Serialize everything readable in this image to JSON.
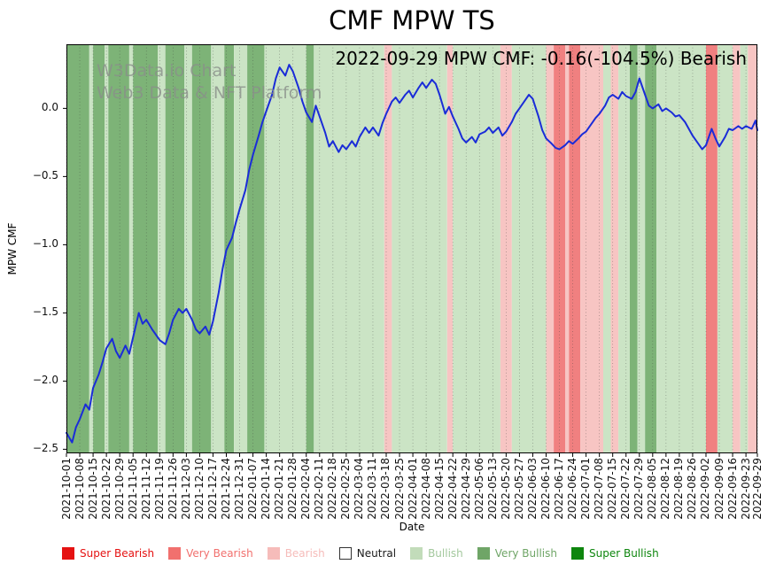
{
  "chart_data": {
    "type": "line",
    "title": "CMF MPW TS",
    "annotation": "2022-09-29 MPW CMF: -0.16(-104.5%) Bearish",
    "watermark_line1": "W3Data.io Chart",
    "watermark_line2": "Web3 Data & NFT Platform",
    "xlabel": "Date",
    "ylabel": "MPW CMF",
    "ylim": [
      -2.53,
      0.47
    ],
    "total_days": 363,
    "grid": "vertical dotted gridlines at weekly date ticks",
    "legend_position": "bottom",
    "y_ticks": [
      [
        "0.0",
        0.0
      ],
      [
        "−0.5",
        -0.5
      ],
      [
        "−1.0",
        -1.0
      ],
      [
        "−1.5",
        -1.5
      ],
      [
        "−2.0",
        -2.0
      ],
      [
        "−2.5",
        -2.5
      ]
    ],
    "x_ticks": [
      [
        "2021-10-01",
        0
      ],
      [
        "2021-10-08",
        7
      ],
      [
        "2021-10-15",
        14
      ],
      [
        "2021-10-22",
        21
      ],
      [
        "2021-10-29",
        28
      ],
      [
        "2021-11-05",
        35
      ],
      [
        "2021-11-12",
        42
      ],
      [
        "2021-11-19",
        49
      ],
      [
        "2021-11-26",
        56
      ],
      [
        "2021-12-03",
        63
      ],
      [
        "2021-12-10",
        70
      ],
      [
        "2021-12-17",
        77
      ],
      [
        "2021-12-24",
        84
      ],
      [
        "2021-12-31",
        91
      ],
      [
        "2022-01-07",
        98
      ],
      [
        "2022-01-14",
        105
      ],
      [
        "2022-01-21",
        112
      ],
      [
        "2022-01-28",
        119
      ],
      [
        "2022-02-04",
        126
      ],
      [
        "2022-02-11",
        133
      ],
      [
        "2022-02-18",
        140
      ],
      [
        "2022-02-25",
        147
      ],
      [
        "2022-03-04",
        154
      ],
      [
        "2022-03-11",
        161
      ],
      [
        "2022-03-18",
        168
      ],
      [
        "2022-03-25",
        175
      ],
      [
        "2022-04-01",
        182
      ],
      [
        "2022-04-08",
        189
      ],
      [
        "2022-04-15",
        196
      ],
      [
        "2022-04-22",
        203
      ],
      [
        "2022-04-29",
        210
      ],
      [
        "2022-05-06",
        217
      ],
      [
        "2022-05-13",
        224
      ],
      [
        "2022-05-20",
        231
      ],
      [
        "2022-05-27",
        238
      ],
      [
        "2022-06-03",
        245
      ],
      [
        "2022-06-10",
        252
      ],
      [
        "2022-06-17",
        259
      ],
      [
        "2022-06-24",
        266
      ],
      [
        "2022-07-01",
        273
      ],
      [
        "2022-07-08",
        280
      ],
      [
        "2022-07-15",
        287
      ],
      [
        "2022-07-22",
        294
      ],
      [
        "2022-07-29",
        301
      ],
      [
        "2022-08-05",
        308
      ],
      [
        "2022-08-12",
        315
      ],
      [
        "2022-08-19",
        322
      ],
      [
        "2022-08-26",
        329
      ],
      [
        "2022-09-02",
        336
      ],
      [
        "2022-09-09",
        343
      ],
      [
        "2022-09-16",
        350
      ],
      [
        "2022-09-23",
        357
      ],
      [
        "2022-09-29",
        363
      ]
    ],
    "series": [
      {
        "name": "MPW CMF",
        "color": "#1a2cd8",
        "points": [
          [
            0,
            -2.38
          ],
          [
            3,
            -2.45
          ],
          [
            5,
            -2.34
          ],
          [
            7,
            -2.28
          ],
          [
            10,
            -2.17
          ],
          [
            12,
            -2.21
          ],
          [
            14,
            -2.05
          ],
          [
            17,
            -1.95
          ],
          [
            19,
            -1.86
          ],
          [
            21,
            -1.76
          ],
          [
            24,
            -1.69
          ],
          [
            26,
            -1.78
          ],
          [
            28,
            -1.83
          ],
          [
            31,
            -1.74
          ],
          [
            33,
            -1.8
          ],
          [
            35,
            -1.68
          ],
          [
            38,
            -1.5
          ],
          [
            40,
            -1.58
          ],
          [
            42,
            -1.55
          ],
          [
            45,
            -1.62
          ],
          [
            47,
            -1.66
          ],
          [
            49,
            -1.7
          ],
          [
            52,
            -1.73
          ],
          [
            54,
            -1.65
          ],
          [
            56,
            -1.55
          ],
          [
            59,
            -1.47
          ],
          [
            61,
            -1.5
          ],
          [
            63,
            -1.47
          ],
          [
            66,
            -1.55
          ],
          [
            68,
            -1.62
          ],
          [
            70,
            -1.65
          ],
          [
            73,
            -1.6
          ],
          [
            75,
            -1.66
          ],
          [
            77,
            -1.56
          ],
          [
            80,
            -1.35
          ],
          [
            82,
            -1.18
          ],
          [
            84,
            -1.04
          ],
          [
            87,
            -0.95
          ],
          [
            89,
            -0.84
          ],
          [
            91,
            -0.74
          ],
          [
            94,
            -0.6
          ],
          [
            96,
            -0.45
          ],
          [
            98,
            -0.34
          ],
          [
            101,
            -0.2
          ],
          [
            103,
            -0.1
          ],
          [
            105,
            -0.02
          ],
          [
            108,
            0.1
          ],
          [
            110,
            0.22
          ],
          [
            112,
            0.3
          ],
          [
            115,
            0.24
          ],
          [
            117,
            0.32
          ],
          [
            119,
            0.27
          ],
          [
            122,
            0.15
          ],
          [
            124,
            0.05
          ],
          [
            126,
            -0.03
          ],
          [
            129,
            -0.1
          ],
          [
            131,
            0.02
          ],
          [
            133,
            -0.06
          ],
          [
            136,
            -0.18
          ],
          [
            138,
            -0.28
          ],
          [
            140,
            -0.24
          ],
          [
            143,
            -0.32
          ],
          [
            145,
            -0.27
          ],
          [
            147,
            -0.3
          ],
          [
            150,
            -0.24
          ],
          [
            152,
            -0.28
          ],
          [
            154,
            -0.21
          ],
          [
            157,
            -0.14
          ],
          [
            159,
            -0.18
          ],
          [
            161,
            -0.14
          ],
          [
            164,
            -0.2
          ],
          [
            166,
            -0.11
          ],
          [
            168,
            -0.04
          ],
          [
            171,
            0.05
          ],
          [
            173,
            0.08
          ],
          [
            175,
            0.04
          ],
          [
            178,
            0.1
          ],
          [
            180,
            0.13
          ],
          [
            182,
            0.08
          ],
          [
            185,
            0.15
          ],
          [
            187,
            0.19
          ],
          [
            189,
            0.15
          ],
          [
            192,
            0.21
          ],
          [
            194,
            0.18
          ],
          [
            196,
            0.1
          ],
          [
            199,
            -0.04
          ],
          [
            201,
            0.01
          ],
          [
            203,
            -0.06
          ],
          [
            206,
            -0.15
          ],
          [
            208,
            -0.22
          ],
          [
            210,
            -0.25
          ],
          [
            213,
            -0.21
          ],
          [
            215,
            -0.25
          ],
          [
            217,
            -0.19
          ],
          [
            220,
            -0.17
          ],
          [
            222,
            -0.14
          ],
          [
            224,
            -0.18
          ],
          [
            227,
            -0.14
          ],
          [
            229,
            -0.2
          ],
          [
            231,
            -0.17
          ],
          [
            234,
            -0.1
          ],
          [
            236,
            -0.04
          ],
          [
            238,
            0.0
          ],
          [
            241,
            0.06
          ],
          [
            243,
            0.1
          ],
          [
            245,
            0.07
          ],
          [
            248,
            -0.06
          ],
          [
            250,
            -0.16
          ],
          [
            252,
            -0.22
          ],
          [
            255,
            -0.26
          ],
          [
            257,
            -0.29
          ],
          [
            259,
            -0.3
          ],
          [
            262,
            -0.27
          ],
          [
            264,
            -0.24
          ],
          [
            266,
            -0.26
          ],
          [
            269,
            -0.22
          ],
          [
            271,
            -0.19
          ],
          [
            273,
            -0.17
          ],
          [
            276,
            -0.11
          ],
          [
            278,
            -0.07
          ],
          [
            280,
            -0.04
          ],
          [
            283,
            0.02
          ],
          [
            285,
            0.08
          ],
          [
            287,
            0.1
          ],
          [
            290,
            0.07
          ],
          [
            292,
            0.12
          ],
          [
            294,
            0.09
          ],
          [
            297,
            0.07
          ],
          [
            299,
            0.12
          ],
          [
            301,
            0.22
          ],
          [
            304,
            0.1
          ],
          [
            306,
            0.02
          ],
          [
            308,
            0.0
          ],
          [
            311,
            0.03
          ],
          [
            313,
            -0.02
          ],
          [
            315,
            0.0
          ],
          [
            318,
            -0.03
          ],
          [
            320,
            -0.06
          ],
          [
            322,
            -0.05
          ],
          [
            325,
            -0.1
          ],
          [
            327,
            -0.15
          ],
          [
            329,
            -0.2
          ],
          [
            332,
            -0.26
          ],
          [
            334,
            -0.3
          ],
          [
            336,
            -0.27
          ],
          [
            339,
            -0.15
          ],
          [
            341,
            -0.22
          ],
          [
            343,
            -0.28
          ],
          [
            346,
            -0.21
          ],
          [
            348,
            -0.15
          ],
          [
            350,
            -0.16
          ],
          [
            353,
            -0.13
          ],
          [
            355,
            -0.15
          ],
          [
            357,
            -0.13
          ],
          [
            360,
            -0.15
          ],
          [
            362,
            -0.09
          ],
          [
            363,
            -0.16
          ]
        ]
      }
    ],
    "band_colors": {
      "super_bearish": "#e51212",
      "very_bearish": "#f08080",
      "bearish": "#f7c5c3",
      "neutral": "#ffffff",
      "bullish": "#cbe4c5",
      "very_bullish": "#7db377",
      "super_bullish": "#0e860e"
    },
    "background_bands": [
      [
        0,
        12,
        "very_bullish"
      ],
      [
        12,
        14,
        "bullish"
      ],
      [
        14,
        20,
        "very_bullish"
      ],
      [
        20,
        22,
        "bullish"
      ],
      [
        22,
        33,
        "very_bullish"
      ],
      [
        33,
        35,
        "bullish"
      ],
      [
        35,
        48,
        "very_bullish"
      ],
      [
        48,
        52,
        "bullish"
      ],
      [
        52,
        62,
        "very_bullish"
      ],
      [
        62,
        66,
        "bullish"
      ],
      [
        66,
        76,
        "very_bullish"
      ],
      [
        76,
        83,
        "bullish"
      ],
      [
        83,
        88,
        "very_bullish"
      ],
      [
        88,
        95,
        "bullish"
      ],
      [
        95,
        104,
        "very_bullish"
      ],
      [
        104,
        126,
        "bullish"
      ],
      [
        126,
        130,
        "very_bullish"
      ],
      [
        130,
        167,
        "bullish"
      ],
      [
        167,
        171,
        "bearish"
      ],
      [
        171,
        200,
        "bullish"
      ],
      [
        200,
        203,
        "bearish"
      ],
      [
        203,
        228,
        "bullish"
      ],
      [
        228,
        234,
        "bearish"
      ],
      [
        234,
        252,
        "bullish"
      ],
      [
        252,
        256,
        "bearish"
      ],
      [
        256,
        262,
        "very_bearish"
      ],
      [
        262,
        264,
        "bearish"
      ],
      [
        264,
        270,
        "very_bearish"
      ],
      [
        270,
        282,
        "bearish"
      ],
      [
        282,
        286,
        "bullish"
      ],
      [
        286,
        290,
        "bearish"
      ],
      [
        290,
        296,
        "bullish"
      ],
      [
        296,
        300,
        "very_bullish"
      ],
      [
        300,
        304,
        "bullish"
      ],
      [
        304,
        310,
        "very_bullish"
      ],
      [
        310,
        336,
        "bullish"
      ],
      [
        336,
        342,
        "very_bearish"
      ],
      [
        342,
        350,
        "bullish"
      ],
      [
        350,
        354,
        "bearish"
      ],
      [
        354,
        358,
        "bullish"
      ],
      [
        358,
        363,
        "bearish"
      ]
    ],
    "legend": [
      {
        "label": "Super Bearish",
        "color": "#e51212",
        "text_color": "#e51212",
        "outlined": false
      },
      {
        "label": "Very Bearish",
        "color": "#f1706e",
        "text_color": "#f1706e",
        "outlined": false
      },
      {
        "label": "Bearish",
        "color": "#f6bcba",
        "text_color": "#f6bcba",
        "outlined": false
      },
      {
        "label": "Neutral",
        "color": "#ffffff",
        "text_color": "#1a1a1a",
        "outlined": true
      },
      {
        "label": "Bullish",
        "color": "#c2dcba",
        "text_color": "#a3c89d",
        "outlined": false
      },
      {
        "label": "Very Bullish",
        "color": "#6fa567",
        "text_color": "#6fa567",
        "outlined": false
      },
      {
        "label": "Super Bullish",
        "color": "#0e860e",
        "text_color": "#0e860e",
        "outlined": false
      }
    ]
  }
}
